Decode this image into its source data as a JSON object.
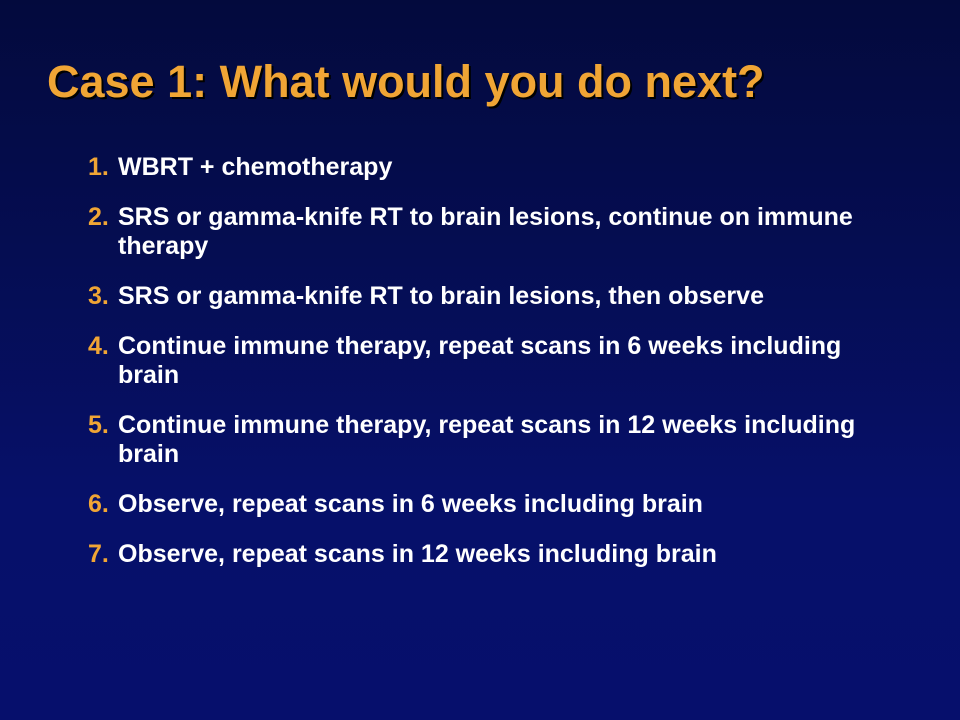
{
  "slide": {
    "title": "Case 1: What would you do next?",
    "options": [
      {
        "number": "1.",
        "text": "WBRT + chemotherapy"
      },
      {
        "number": "2.",
        "text": "SRS or gamma-knife RT to brain lesions, continue on immune therapy"
      },
      {
        "number": "3.",
        "text": "SRS or gamma-knife RT to brain lesions, then observe"
      },
      {
        "number": "4.",
        "text": "Continue immune therapy, repeat scans in 6 weeks including brain"
      },
      {
        "number": "5.",
        "text": "Continue immune therapy, repeat scans in 12 weeks including brain"
      },
      {
        "number": "6.",
        "text": "Observe, repeat scans in 6 weeks including brain"
      },
      {
        "number": "7.",
        "text": "Observe, repeat scans in 12 weeks including brain"
      }
    ]
  },
  "colors": {
    "background_top": "#030a3d",
    "background_bottom": "#060f6c",
    "title": "#f0a535",
    "number": "#f0a535",
    "text": "#ffffff"
  }
}
